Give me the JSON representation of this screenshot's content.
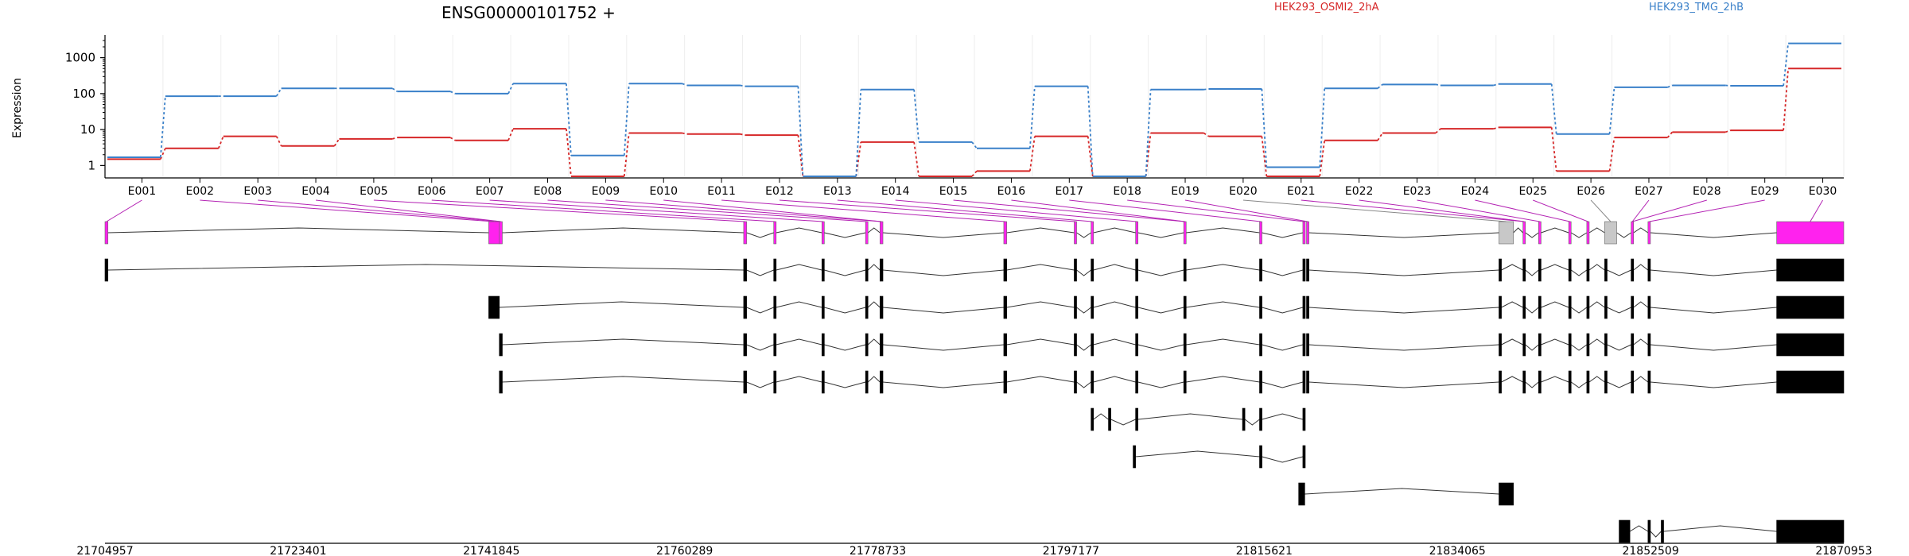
{
  "chart_data": {
    "type": "line",
    "title": "ENSG00000101752 +",
    "ylabel": "Expression",
    "y_scale": "log",
    "y_ticks": [
      1,
      10,
      100,
      1000
    ],
    "y_tick_labels": [
      "1",
      "10",
      "100",
      "1000"
    ],
    "ylim": [
      0.5,
      3500
    ],
    "grid": "vertical",
    "legend": "top-right",
    "categories": [
      "E001",
      "E002",
      "E003",
      "E004",
      "E005",
      "E006",
      "E007",
      "E008",
      "E009",
      "E010",
      "E011",
      "E012",
      "E013",
      "E014",
      "E015",
      "E016",
      "E017",
      "E018",
      "E019",
      "E020",
      "E021",
      "E022",
      "E023",
      "E024",
      "E025",
      "E026",
      "E027",
      "E028",
      "E029",
      "E030"
    ],
    "series": [
      {
        "name": "HEK293_OSMI2_2hA",
        "color": "#d62728",
        "values": [
          1.5,
          3,
          6.5,
          3.5,
          5.5,
          6,
          5,
          10.5,
          0.5,
          8,
          7.5,
          7,
          0.5,
          4.5,
          0.5,
          0.7,
          6.5,
          0.5,
          8,
          6.5,
          0.5,
          5,
          8,
          10.5,
          11.5,
          0.7,
          6,
          8.5,
          9.5,
          500
        ]
      },
      {
        "name": "HEK293_TMG_2hB",
        "color": "#3a80c9",
        "values": [
          1.7,
          85,
          85,
          140,
          140,
          115,
          100,
          190,
          1.9,
          190,
          170,
          160,
          0.5,
          130,
          4.5,
          3,
          160,
          0.5,
          130,
          135,
          0.9,
          140,
          180,
          170,
          185,
          7.5,
          150,
          170,
          165,
          2500
        ]
      }
    ],
    "genomic_axis": {
      "tick_labels": [
        "21704957",
        "21723401",
        "21741845",
        "21760289",
        "21778733",
        "21797177",
        "21815621",
        "21834065",
        "21852509",
        "21870953"
      ]
    },
    "exons": [
      {
        "start": 0.0,
        "end": 0.0017
      },
      {
        "start": 0.2207,
        "end": 0.2268
      },
      {
        "start": 0.2268,
        "end": 0.2285
      },
      {
        "start": 0.3673,
        "end": 0.369
      },
      {
        "start": 0.3846,
        "end": 0.386
      },
      {
        "start": 0.4123,
        "end": 0.4137
      },
      {
        "start": 0.4374,
        "end": 0.4388
      },
      {
        "start": 0.4457,
        "end": 0.4474
      },
      {
        "start": 0.5169,
        "end": 0.5186
      },
      {
        "start": 0.5574,
        "end": 0.5588
      },
      {
        "start": 0.5671,
        "end": 0.5685
      },
      {
        "start": 0.5927,
        "end": 0.5941
      },
      {
        "start": 0.6204,
        "end": 0.6218
      },
      {
        "start": 0.664,
        "end": 0.6654
      },
      {
        "start": 0.6889,
        "end": 0.6903
      },
      {
        "start": 0.691,
        "end": 0.6924
      },
      {
        "start": 0.8017,
        "end": 0.81
      },
      {
        "start": 0.8155,
        "end": 0.8169
      },
      {
        "start": 0.8245,
        "end": 0.8259
      },
      {
        "start": 0.8418,
        "end": 0.8432
      },
      {
        "start": 0.8522,
        "end": 0.8536
      },
      {
        "start": 0.8625,
        "end": 0.8694
      },
      {
        "start": 0.8777,
        "end": 0.8791
      },
      {
        "start": 0.8874,
        "end": 0.8888
      },
      {
        "start": 0.9614,
        "end": 1.0
      }
    ],
    "transcripts": [
      [
        [
          0.0,
          0.0017
        ],
        [
          0.3673,
          0.369
        ],
        [
          0.3846,
          0.386
        ],
        [
          0.4123,
          0.4137
        ],
        [
          0.4374,
          0.4388
        ],
        [
          0.4457,
          0.4474
        ],
        [
          0.5169,
          0.5186
        ],
        [
          0.5574,
          0.5588
        ],
        [
          0.5671,
          0.5685
        ],
        [
          0.5927,
          0.5941
        ],
        [
          0.6204,
          0.6218
        ],
        [
          0.664,
          0.6654
        ],
        [
          0.6889,
          0.6903
        ],
        [
          0.691,
          0.6924
        ],
        [
          0.8017,
          0.8031
        ],
        [
          0.8155,
          0.8169
        ],
        [
          0.8245,
          0.8259
        ],
        [
          0.8418,
          0.8432
        ],
        [
          0.8522,
          0.8536
        ],
        [
          0.8625,
          0.8639
        ],
        [
          0.8777,
          0.8791
        ],
        [
          0.8874,
          0.8888
        ],
        [
          0.9614,
          1.0
        ]
      ],
      [
        [
          0.2207,
          0.2268
        ],
        [
          0.3673,
          0.369
        ],
        [
          0.3846,
          0.386
        ],
        [
          0.4123,
          0.4137
        ],
        [
          0.4374,
          0.4388
        ],
        [
          0.4457,
          0.4474
        ],
        [
          0.5169,
          0.5186
        ],
        [
          0.5574,
          0.5588
        ],
        [
          0.5671,
          0.5685
        ],
        [
          0.5927,
          0.5941
        ],
        [
          0.6204,
          0.6218
        ],
        [
          0.664,
          0.6654
        ],
        [
          0.6889,
          0.6903
        ],
        [
          0.691,
          0.6924
        ],
        [
          0.8017,
          0.8031
        ],
        [
          0.8155,
          0.8169
        ],
        [
          0.8245,
          0.8259
        ],
        [
          0.8418,
          0.8432
        ],
        [
          0.8522,
          0.8536
        ],
        [
          0.8625,
          0.8639
        ],
        [
          0.8777,
          0.8791
        ],
        [
          0.8874,
          0.8888
        ],
        [
          0.9614,
          1.0
        ]
      ],
      [
        [
          0.2268,
          0.2285
        ],
        [
          0.3673,
          0.369
        ],
        [
          0.3846,
          0.386
        ],
        [
          0.4123,
          0.4137
        ],
        [
          0.4374,
          0.4388
        ],
        [
          0.4457,
          0.4474
        ],
        [
          0.5169,
          0.5186
        ],
        [
          0.5574,
          0.5588
        ],
        [
          0.5671,
          0.5685
        ],
        [
          0.5927,
          0.5941
        ],
        [
          0.6204,
          0.6218
        ],
        [
          0.664,
          0.6654
        ],
        [
          0.6889,
          0.6903
        ],
        [
          0.691,
          0.6924
        ],
        [
          0.8017,
          0.8031
        ],
        [
          0.8155,
          0.8169
        ],
        [
          0.8245,
          0.8259
        ],
        [
          0.8418,
          0.8432
        ],
        [
          0.8522,
          0.8536
        ],
        [
          0.8625,
          0.8639
        ],
        [
          0.8777,
          0.8791
        ],
        [
          0.8874,
          0.8888
        ],
        [
          0.9614,
          1.0
        ]
      ],
      [
        [
          0.2268,
          0.2285
        ],
        [
          0.3673,
          0.369
        ],
        [
          0.3846,
          0.386
        ],
        [
          0.4123,
          0.4137
        ],
        [
          0.4374,
          0.4388
        ],
        [
          0.4457,
          0.4474
        ],
        [
          0.5169,
          0.5186
        ],
        [
          0.5574,
          0.5588
        ],
        [
          0.5671,
          0.5685
        ],
        [
          0.5927,
          0.5941
        ],
        [
          0.6204,
          0.6218
        ],
        [
          0.664,
          0.6654
        ],
        [
          0.6889,
          0.6903
        ],
        [
          0.691,
          0.6924
        ],
        [
          0.8017,
          0.8031
        ],
        [
          0.8155,
          0.8169
        ],
        [
          0.8245,
          0.8259
        ],
        [
          0.8418,
          0.8432
        ],
        [
          0.8522,
          0.8536
        ],
        [
          0.8625,
          0.8639
        ],
        [
          0.8777,
          0.8791
        ],
        [
          0.8874,
          0.8888
        ],
        [
          0.9614,
          1.0
        ]
      ],
      [
        [
          0.5671,
          0.5685
        ],
        [
          0.5771,
          0.5785
        ],
        [
          0.5927,
          0.5941
        ],
        [
          0.6542,
          0.6556
        ],
        [
          0.664,
          0.6654
        ],
        [
          0.6889,
          0.6903
        ]
      ],
      [
        [
          0.5913,
          0.5927
        ],
        [
          0.664,
          0.6654
        ],
        [
          0.6889,
          0.6903
        ]
      ],
      [
        [
          0.6865,
          0.69
        ],
        [
          0.8017,
          0.81
        ]
      ],
      [
        [
          0.8708,
          0.877
        ],
        [
          0.8874,
          0.8888
        ],
        [
          0.895,
          0.8964
        ],
        [
          0.9614,
          1.0
        ]
      ]
    ]
  }
}
